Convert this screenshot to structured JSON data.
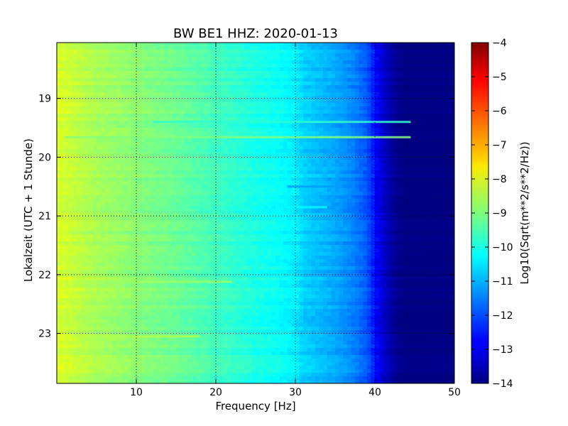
{
  "chart_data": {
    "type": "heatmap",
    "title": "BW BE1 HHZ: 2020-01-13",
    "xlabel": "Frequency [Hz]",
    "ylabel": "Lokalzeit (UTC + 1 Stunde)",
    "xlim": [
      0,
      50
    ],
    "ylim": [
      18.05,
      23.85
    ],
    "y_inverted": true,
    "x_ticks": [
      10,
      20,
      30,
      40,
      50
    ],
    "x_tick_labels": [
      "10",
      "20",
      "30",
      "40",
      "50"
    ],
    "y_ticks": [
      19,
      20,
      21,
      22,
      23
    ],
    "y_tick_labels": [
      "19",
      "20",
      "21",
      "22",
      "23"
    ],
    "grid": true,
    "colormap": "jet",
    "colorbar": {
      "label": "Log10(Sqrt(m**2/s**2/Hz))",
      "vmin": -14,
      "vmax": -4,
      "ticks": [
        -4,
        -5,
        -6,
        -7,
        -8,
        -9,
        -10,
        -11,
        -12,
        -13,
        -14
      ],
      "tick_labels": [
        "−4",
        "−5",
        "−6",
        "−7",
        "−8",
        "−9",
        "−10",
        "−11",
        "−12",
        "−13",
        "−14"
      ]
    },
    "spectrum_profile": [
      [
        0,
        -8.1
      ],
      [
        2,
        -8.3
      ],
      [
        5,
        -8.6
      ],
      [
        10,
        -8.9
      ],
      [
        15,
        -9.2
      ],
      [
        20,
        -9.6
      ],
      [
        25,
        -10.0
      ],
      [
        28,
        -10.2
      ],
      [
        30,
        -10.4
      ],
      [
        31,
        -10.7
      ],
      [
        33,
        -10.9
      ],
      [
        35,
        -11.1
      ],
      [
        37,
        -11.4
      ],
      [
        39,
        -11.9
      ],
      [
        40,
        -12.6
      ],
      [
        41,
        -13.2
      ],
      [
        42,
        -13.6
      ],
      [
        43,
        -13.9
      ],
      [
        44,
        -14.0
      ],
      [
        50,
        -14.0
      ]
    ],
    "noise_bands": [
      {
        "time": 19.4,
        "f_start": 12,
        "f_end": 44.5,
        "value": -9.8
      },
      {
        "time": 19.66,
        "f_start": 1,
        "f_end": 44.5,
        "value": -9.0
      },
      {
        "time": 20.5,
        "f_start": 29,
        "f_end": 36,
        "value": -11.2
      },
      {
        "time": 20.85,
        "f_start": 28,
        "f_end": 34,
        "value": -10.3
      },
      {
        "time": 22.12,
        "f_start": 6,
        "f_end": 22,
        "value": -8.7
      },
      {
        "time": 23.05,
        "f_start": 4,
        "f_end": 18,
        "value": -8.5
      }
    ]
  }
}
